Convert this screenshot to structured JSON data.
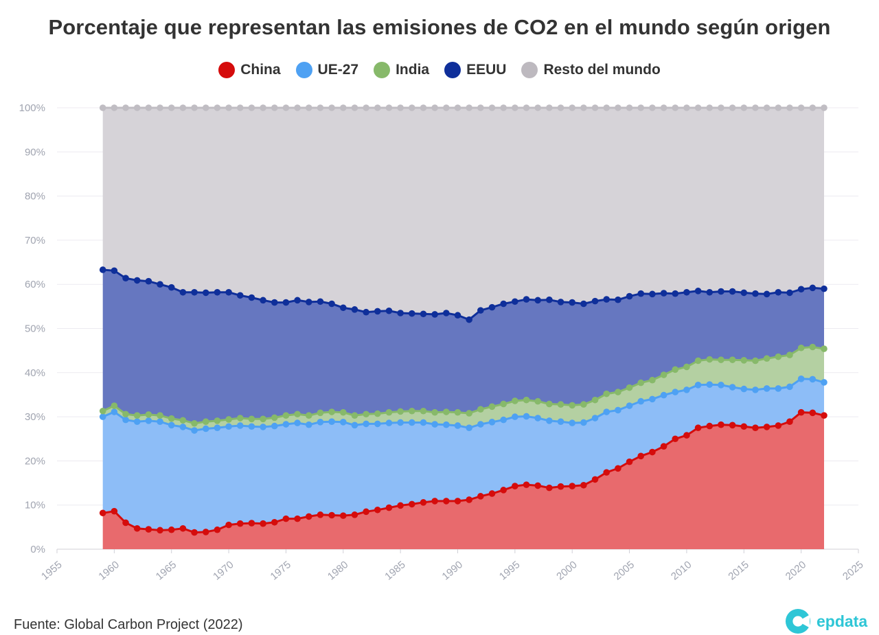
{
  "title": "Porcentaje que representan las emisiones de CO2 en el mundo según origen",
  "source": "Fuente: Global Carbon Project (2022)",
  "brand": {
    "name": "epdata",
    "icon": "epdata-logo-icon"
  },
  "legend": [
    {
      "label": "China",
      "color": "#d50c0c"
    },
    {
      "label": "UE-27",
      "color": "#4ea1f3"
    },
    {
      "label": "India",
      "color": "#87b96a"
    },
    {
      "label": "EEUU",
      "color": "#0f2f9a"
    },
    {
      "label": "Resto del mundo",
      "color": "#bdb9bf"
    }
  ],
  "chart_data": {
    "type": "area",
    "stacked": true,
    "x": [
      1959,
      1960,
      1961,
      1962,
      1963,
      1964,
      1965,
      1966,
      1967,
      1968,
      1969,
      1970,
      1971,
      1972,
      1973,
      1974,
      1975,
      1976,
      1977,
      1978,
      1979,
      1980,
      1981,
      1982,
      1983,
      1984,
      1985,
      1986,
      1987,
      1988,
      1989,
      1990,
      1991,
      1992,
      1993,
      1994,
      1995,
      1996,
      1997,
      1998,
      1999,
      2000,
      2001,
      2002,
      2003,
      2004,
      2005,
      2006,
      2007,
      2008,
      2009,
      2010,
      2011,
      2012,
      2013,
      2014,
      2015,
      2016,
      2017,
      2018,
      2019,
      2020,
      2021,
      2022
    ],
    "series": [
      {
        "name": "China",
        "color": "#d50c0c",
        "fill": "#e86a6d",
        "values": [
          8.2,
          8.6,
          6.0,
          4.7,
          4.5,
          4.3,
          4.4,
          4.7,
          3.8,
          3.9,
          4.4,
          5.5,
          5.8,
          5.9,
          5.8,
          6.1,
          6.9,
          6.9,
          7.4,
          7.8,
          7.7,
          7.6,
          7.8,
          8.5,
          8.9,
          9.4,
          9.9,
          10.2,
          10.6,
          10.9,
          10.9,
          10.9,
          11.2,
          12.0,
          12.6,
          13.4,
          14.3,
          14.6,
          14.4,
          13.9,
          14.2,
          14.3,
          14.5,
          15.8,
          17.4,
          18.3,
          19.8,
          21.1,
          22.0,
          23.3,
          25.0,
          25.8,
          27.5,
          27.9,
          28.2,
          28.1,
          27.8,
          27.5,
          27.7,
          28.0,
          28.9,
          31.0,
          30.9,
          30.3
        ]
      },
      {
        "name": "UE-27",
        "color": "#4ea1f3",
        "fill": "#8dbdf7",
        "values": [
          21.8,
          22.5,
          23.3,
          24.2,
          24.6,
          24.6,
          23.7,
          23.0,
          23.1,
          23.4,
          23.1,
          22.3,
          22.2,
          21.9,
          21.9,
          21.8,
          21.4,
          21.7,
          20.8,
          21.0,
          21.2,
          21.2,
          20.3,
          19.9,
          19.5,
          19.2,
          18.8,
          18.5,
          18.1,
          17.4,
          17.3,
          17.1,
          16.3,
          16.3,
          16.2,
          15.9,
          15.7,
          15.5,
          15.3,
          15.2,
          14.7,
          14.3,
          14.2,
          13.9,
          13.7,
          13.2,
          12.7,
          12.4,
          12.0,
          11.6,
          10.6,
          10.3,
          9.7,
          9.4,
          9.0,
          8.6,
          8.5,
          8.6,
          8.7,
          8.4,
          7.9,
          7.6,
          7.6,
          7.5
        ]
      },
      {
        "name": "India",
        "color": "#87b96a",
        "fill": "#b4d0a2",
        "values": [
          1.3,
          1.4,
          1.3,
          1.4,
          1.4,
          1.4,
          1.5,
          1.5,
          1.6,
          1.6,
          1.6,
          1.6,
          1.7,
          1.7,
          1.8,
          1.9,
          2.0,
          2.0,
          2.1,
          2.1,
          2.2,
          2.2,
          2.2,
          2.2,
          2.3,
          2.4,
          2.5,
          2.6,
          2.6,
          2.7,
          2.9,
          3.0,
          3.3,
          3.4,
          3.5,
          3.6,
          3.6,
          3.7,
          3.8,
          3.8,
          3.9,
          4.0,
          4.1,
          4.1,
          4.1,
          4.1,
          4.1,
          4.2,
          4.3,
          4.6,
          5.1,
          5.2,
          5.5,
          5.7,
          5.7,
          6.2,
          6.5,
          6.6,
          6.8,
          7.2,
          7.2,
          7.0,
          7.3,
          7.6
        ]
      },
      {
        "name": "EEUU",
        "color": "#0f2f9a",
        "fill": "#6677c0",
        "values": [
          32.0,
          30.6,
          30.8,
          30.6,
          30.2,
          29.7,
          29.7,
          29.0,
          29.7,
          29.2,
          29.1,
          28.8,
          27.8,
          27.5,
          26.9,
          26.1,
          25.6,
          25.8,
          25.7,
          25.2,
          24.5,
          23.7,
          24.0,
          23.1,
          23.2,
          23.0,
          22.3,
          22.1,
          22.0,
          22.2,
          22.4,
          22.0,
          21.2,
          22.4,
          22.5,
          22.7,
          22.5,
          22.8,
          22.9,
          23.6,
          23.2,
          23.3,
          22.8,
          22.4,
          21.4,
          20.9,
          20.7,
          20.2,
          19.5,
          18.5,
          17.2,
          16.9,
          15.8,
          15.2,
          15.5,
          15.5,
          15.3,
          15.2,
          14.6,
          14.6,
          14.1,
          13.3,
          13.4,
          13.6
        ]
      },
      {
        "name": "Resto del mundo",
        "color": "#c0bdc3",
        "fill": "#d6d3d8",
        "values": [
          36.7,
          36.9,
          38.6,
          39.1,
          39.3,
          40.0,
          40.7,
          41.8,
          41.8,
          41.9,
          41.8,
          41.8,
          42.5,
          43.0,
          43.6,
          44.1,
          44.1,
          43.6,
          44.0,
          43.9,
          44.4,
          45.3,
          45.7,
          46.3,
          46.1,
          46.0,
          46.5,
          46.6,
          46.7,
          46.8,
          46.5,
          47.0,
          48.0,
          45.9,
          45.2,
          44.4,
          43.9,
          43.4,
          43.6,
          43.5,
          44.0,
          44.1,
          44.4,
          43.8,
          43.4,
          43.5,
          42.7,
          42.1,
          42.2,
          42.0,
          42.1,
          41.8,
          41.5,
          41.8,
          41.6,
          41.6,
          41.9,
          42.1,
          42.2,
          41.8,
          41.9,
          41.1,
          40.8,
          41.0
        ]
      }
    ],
    "xlim": [
      1955,
      2025
    ],
    "ylim": [
      0,
      100
    ],
    "x_ticks": [
      1955,
      1960,
      1965,
      1970,
      1975,
      1980,
      1985,
      1990,
      1995,
      2000,
      2005,
      2010,
      2015,
      2020,
      2025
    ],
    "y_ticks": [
      0,
      10,
      20,
      30,
      40,
      50,
      60,
      70,
      80,
      90,
      100
    ],
    "y_tick_labels": [
      "0%",
      "10%",
      "20%",
      "30%",
      "40%",
      "50%",
      "60%",
      "70%",
      "80%",
      "90%",
      "100%"
    ],
    "grid": true,
    "legend_position": "top-center",
    "markers": true
  }
}
